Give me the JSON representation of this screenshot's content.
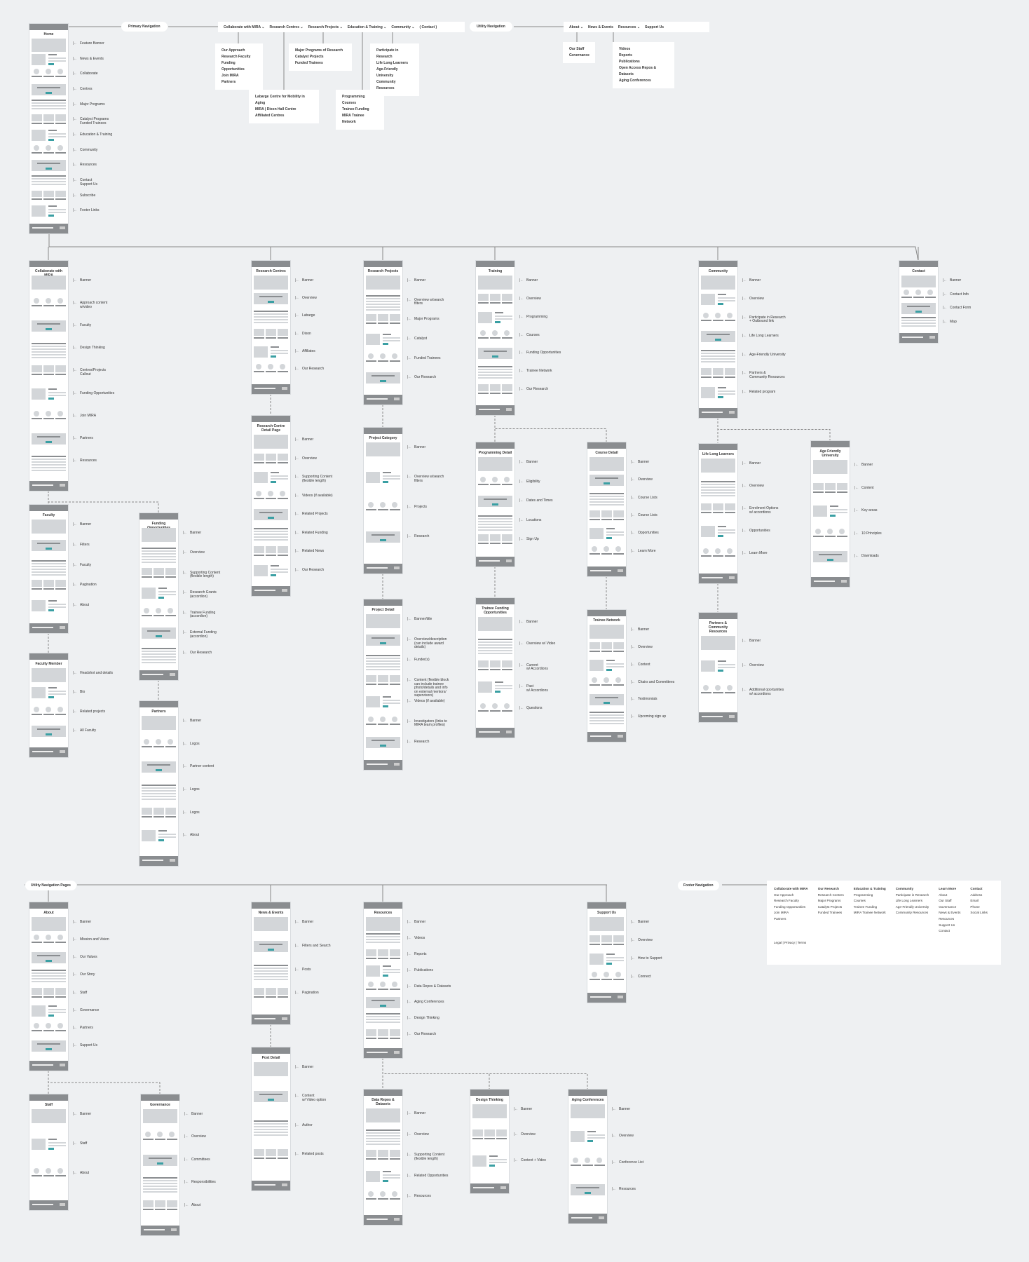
{
  "primary_nav": {
    "label": "Primary Navigation",
    "items": [
      "Collaborate with MIRA ⌄",
      "Research Centres ⌄",
      "Research Projects ⌄",
      "Education & Training ⌄",
      "Community ⌄",
      "( Contact )"
    ],
    "dropdowns": {
      "collaborate": [
        "Our Approach",
        "Research Faculty",
        "Funding Opportunities",
        "Join MIRA",
        "Partners"
      ],
      "centres": [
        "Labarge Centre for Mobility in Aging",
        "MIRA | Dixon Hall Centre",
        "Affiliated Centres"
      ],
      "projects": [
        "Major Programs of Research",
        "Catalyst Projects",
        "Funded Trainees"
      ],
      "education": [
        "Programming",
        "Courses",
        "Trainee Funding",
        "MIRA Trainee Network"
      ],
      "community": [
        "Participate in Research",
        "Life Long Learners",
        "Age-Friendly University",
        "Community Resources"
      ]
    }
  },
  "utility_nav": {
    "label": "Utility Navigation",
    "items": [
      "About ⌄",
      "News & Events",
      "Resources ⌄",
      "Support Us"
    ],
    "dropdowns": {
      "about": [
        "Our Staff",
        "Governance"
      ],
      "resources": [
        "Videos",
        "Reports",
        "Publications",
        "Open Access Repos & Datasets",
        "Aging Conferences"
      ]
    }
  },
  "section_labels": {
    "utility_pages": "Utility Navigation Pages",
    "footer_nav": "Footer Navigation"
  },
  "footer_nav": {
    "columns": [
      {
        "title": "Collaborate with MIRA",
        "items": [
          "Our Approach",
          "Research Faculty",
          "Funding Opportunities",
          "Join MIRA",
          "Partners"
        ]
      },
      {
        "title": "Our Research",
        "items": [
          "Research Centres",
          "Major Programs",
          "Catalyst Projects",
          "Funded Trainees"
        ]
      },
      {
        "title": "Education & Training",
        "items": [
          "Programming",
          "Courses",
          "Trainee Funding",
          "MIRA Trainee Network"
        ]
      },
      {
        "title": "Community",
        "items": [
          "Participate in Research",
          "Life Long Learners",
          "Age-Friendly University",
          "Community Resources"
        ]
      },
      {
        "title": "Learn More",
        "items": [
          "About",
          "Our Staff",
          "Governance",
          "News & Events",
          "Resources",
          "Support Us",
          "Contact"
        ]
      },
      {
        "title": "Contact",
        "items": [
          "Address",
          "Email",
          "Phone",
          "Social Links"
        ]
      }
    ],
    "legal": "Legal  |  Privacy  |  Terms"
  },
  "colors": {
    "background": "#eef0f2",
    "placeholder": "#d3d6d9",
    "dark": "#8a8d90",
    "accent": "#3a9fa3"
  },
  "pages": [
    {
      "id": "home",
      "title": "Home",
      "labels": [
        "Feature Banner",
        "News & Events",
        "Collaborate",
        "Centres",
        "Major Programs",
        "Catalyst Programs\nFunded Trainees",
        "Education & Training",
        "Community",
        "Resources",
        "Contact\nSupport Us",
        "Subscribe",
        "Footer Links"
      ]
    },
    {
      "id": "collab",
      "title": "Collaborate with MIRA",
      "labels": [
        "Banner",
        "Approach content\nw/video",
        "Faculty",
        "Design Thinking",
        "Centres/Projects\nCallout",
        "Funding Opportunities",
        "Join MIRA",
        "Partners",
        "Resources"
      ]
    },
    {
      "id": "centres",
      "title": "Research Centres",
      "labels": [
        "Banner",
        "Overview",
        "Labarge",
        "Dixon",
        "Affiliates",
        "Our Research"
      ]
    },
    {
      "id": "projects",
      "title": "Research Projects",
      "labels": [
        "Banner",
        "Overview w/search\nfilters",
        "Major Programs",
        "Catalyst",
        "Funded Trainees",
        "Our Research"
      ]
    },
    {
      "id": "training",
      "title": "Training",
      "labels": [
        "Banner",
        "Overview",
        "Programming",
        "Courses",
        "Funding Opportunities",
        "Trainee Network",
        "Our Research"
      ]
    },
    {
      "id": "community",
      "title": "Community",
      "labels": [
        "Banner",
        "Overview",
        "Participate in Research\n+ Outbound link",
        "Life Long Learners",
        "Age-Friendly University",
        "Partners &\nCommunity Resources",
        "Related program"
      ]
    },
    {
      "id": "contact",
      "title": "Contact",
      "labels": [
        "Banner",
        "Contact Info",
        "Contact Form",
        "Map"
      ]
    },
    {
      "id": "faculty",
      "title": "Faculty",
      "labels": [
        "Banner",
        "Filters",
        "Faculty",
        "Pagination",
        "About"
      ]
    },
    {
      "id": "funding",
      "title": "Funding Opportunities",
      "labels": [
        "Banner",
        "Overview",
        "Supporting Content\n(flexible length)",
        "Research Grants\n(accordion)",
        "Trainee Funding\n(accordion)",
        "External Funding\n(accordion)",
        "Our Research"
      ]
    },
    {
      "id": "centredetail",
      "title": "Research Centre\nDetail Page",
      "labels": [
        "Banner",
        "Overview",
        "Supporting Content\n(flexible length)",
        "Videos (if available)",
        "Related Projects",
        "Related Funding",
        "Related News",
        "Our Research"
      ]
    },
    {
      "id": "projcat",
      "title": "Project Category",
      "labels": [
        "Banner",
        "Overview w/search\nfilters",
        "Projects",
        "Research"
      ]
    },
    {
      "id": "progdetail",
      "title": "Programming Detail",
      "labels": [
        "Banner",
        "Eligibility",
        "Dates and Times",
        "Locations",
        "Sign Up"
      ]
    },
    {
      "id": "coursedetail",
      "title": "Course Detail",
      "labels": [
        "Banner",
        "Overview",
        "Course Lists",
        "Course Lists",
        "Opportunities",
        "Learn More"
      ]
    },
    {
      "id": "lll",
      "title": "Life Long Learners",
      "labels": [
        "Banner",
        "Overview",
        "Enrolment Options\nw/ accordions",
        "Opportunities",
        "Learn More"
      ]
    },
    {
      "id": "afu",
      "title": "Age Friendly\nUniversity",
      "labels": [
        "Banner",
        "Content",
        "Key areas",
        "10 Principles",
        "Downloads"
      ]
    },
    {
      "id": "facmember",
      "title": "Faculty Member",
      "labels": [
        "Headshot and details",
        "Bio",
        "Related projects",
        "All Faculty"
      ]
    },
    {
      "id": "partners",
      "title": "Partners",
      "labels": [
        "Banner",
        "Logos",
        "Partner content",
        "Logos",
        "Logos",
        "About"
      ]
    },
    {
      "id": "projdetail",
      "title": "Project Detail",
      "labels": [
        "Banner/title",
        "Overview/description\n(can include award\ndetails)",
        "Funder(s)",
        "Content (flexible block\ncan include trainee\nphoto/details and info\non external mentors/\nsupervisors)",
        "Videos (if available)",
        "Investigators (links to\nMIRA team profiles)",
        "Research"
      ]
    },
    {
      "id": "tfo",
      "title": "Trainee Funding\nOpportunities",
      "labels": [
        "Banner",
        "Overview w/ Video",
        "Current\nw/ Accordions",
        "Past\nw/ Accordions",
        "Questions"
      ]
    },
    {
      "id": "tnet",
      "title": "Trainee Network",
      "labels": [
        "Banner",
        "Overview",
        "Content",
        "Chairs and Committees",
        "Testimonials",
        "Upcoming sign up"
      ]
    },
    {
      "id": "pcr",
      "title": "Partners &\nCommunity\nResources",
      "labels": [
        "Banner",
        "Overview",
        "Additional oportunities\nw/ accordions"
      ]
    },
    {
      "id": "about",
      "title": "About",
      "labels": [
        "Banner",
        "Mission and Vision",
        "Our Values",
        "Our Story",
        "Staff",
        "Governance",
        "Partners",
        "Support Us"
      ]
    },
    {
      "id": "news",
      "title": "News & Events",
      "labels": [
        "Banner",
        "Filters and Search",
        "Posts",
        "Pagination"
      ]
    },
    {
      "id": "resources",
      "title": "Resources",
      "labels": [
        "Banner",
        "Videos",
        "Reports",
        "Publications",
        "Data Repos & Datasets",
        "Aging Conferences",
        "Design Thinking",
        "Our Research"
      ]
    },
    {
      "id": "support",
      "title": "Support Us",
      "labels": [
        "Banner",
        "Overview",
        "How to Support",
        "Connect"
      ]
    },
    {
      "id": "staff",
      "title": "Staff",
      "labels": [
        "Banner",
        "Staff",
        "About"
      ]
    },
    {
      "id": "governance",
      "title": "Governance",
      "labels": [
        "Banner",
        "Overview",
        "Committees",
        "Responsibilities",
        "About"
      ]
    },
    {
      "id": "postdetail",
      "title": "Post Detail",
      "labels": [
        "Banner",
        "Content\nw/ Video option",
        "Author",
        "Related posts"
      ]
    },
    {
      "id": "datarepos",
      "title": "Data Repos &\nDatasets",
      "labels": [
        "Banner",
        "Overview",
        "Supporting Content\n(flexible length)",
        "Related Opportunities",
        "Resources"
      ]
    },
    {
      "id": "design",
      "title": "Design Thinking",
      "labels": [
        "Banner",
        "Overview",
        "Content + Video"
      ]
    },
    {
      "id": "conferences",
      "title": "Aging Conferences",
      "labels": [
        "Banner",
        "Overview",
        "Conference List",
        "Resources"
      ]
    }
  ]
}
